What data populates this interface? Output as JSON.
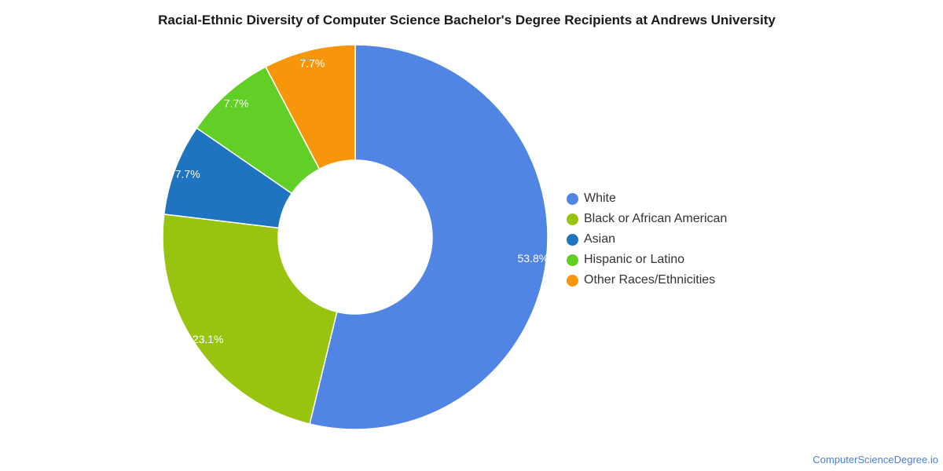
{
  "chart_data": {
    "type": "pie",
    "title": "Racial-Ethnic Diversity of Computer Science Bachelor's Degree Recipients at Andrews University",
    "donut": true,
    "legend_position": "right",
    "slices": [
      {
        "label": "White",
        "value": 53.8,
        "display": "53.8%",
        "color": "#5185e3"
      },
      {
        "label": "Black or African American",
        "value": 23.1,
        "display": "23.1%",
        "color": "#98c40f"
      },
      {
        "label": "Asian",
        "value": 7.7,
        "display": "7.7%",
        "color": "#1f74bf"
      },
      {
        "label": "Hispanic or Latino",
        "value": 7.7,
        "display": "7.7%",
        "color": "#61cf25"
      },
      {
        "label": "Other Races/Ethnicities",
        "value": 7.7,
        "display": "7.7%",
        "color": "#f7950b"
      }
    ]
  },
  "footer": {
    "source": "ComputerScienceDegree.io"
  }
}
